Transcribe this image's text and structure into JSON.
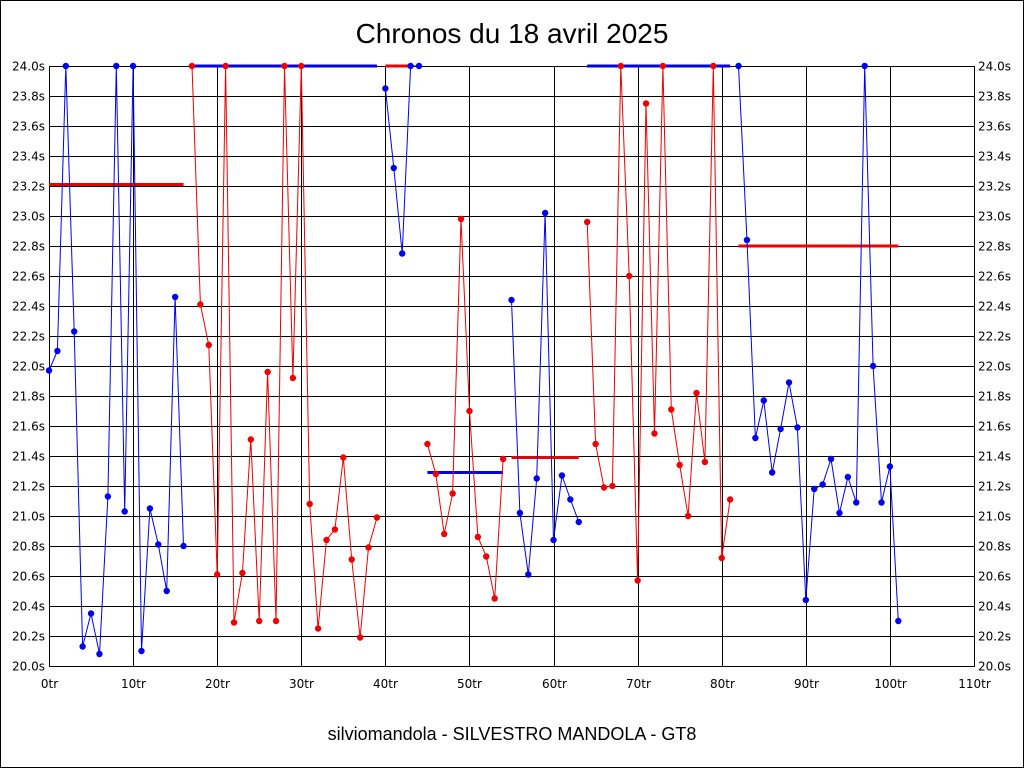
{
  "chart_data": {
    "type": "line",
    "title": "Chronos du 18 avril 2025",
    "subtitle": "silviomandola - SILVESTRO MANDOLA - GT8",
    "x_unit": "tr",
    "y_unit": "s",
    "xlim": [
      0,
      110
    ],
    "ylim": [
      20.0,
      24.0
    ],
    "x_ticks": [
      0,
      10,
      20,
      30,
      40,
      50,
      60,
      70,
      80,
      90,
      100,
      110
    ],
    "y_ticks": [
      20.0,
      20.2,
      20.4,
      20.6,
      20.8,
      21.0,
      21.2,
      21.4,
      21.6,
      21.8,
      22.0,
      22.2,
      22.4,
      22.6,
      22.8,
      23.0,
      23.2,
      23.4,
      23.6,
      23.8,
      24.0
    ],
    "x_tick_labels": [
      "0tr",
      "10tr",
      "20tr",
      "30tr",
      "40tr",
      "50tr",
      "60tr",
      "70tr",
      "80tr",
      "90tr",
      "100tr",
      "110tr"
    ],
    "y_tick_labels": [
      "20.0s",
      "20.2s",
      "20.4s",
      "20.6s",
      "20.8s",
      "21.0s",
      "21.2s",
      "21.4s",
      "21.6s",
      "21.8s",
      "22.0s",
      "22.2s",
      "22.4s",
      "22.6s",
      "22.8s",
      "23.0s",
      "23.2s",
      "23.4s",
      "23.6s",
      "23.8s",
      "24.0s"
    ],
    "grid": true,
    "colors": {
      "blue": "#0000ee",
      "red": "#ee0000",
      "grid": "#000000"
    },
    "series": [
      {
        "color": "blue",
        "x": [
          0,
          1,
          2,
          3,
          4,
          5,
          6,
          7,
          8,
          9,
          10,
          11,
          12,
          13,
          14,
          15,
          16
        ],
        "y": [
          21.97,
          22.1,
          24.0,
          22.23,
          20.13,
          20.35,
          20.08,
          21.13,
          24.0,
          21.03,
          24.0,
          20.1,
          21.05,
          20.81,
          20.5,
          22.46,
          20.8
        ]
      },
      {
        "color": "red",
        "x": [
          17,
          18,
          19,
          20,
          21,
          22,
          23,
          24,
          25,
          26,
          27,
          28,
          29,
          30,
          31,
          32,
          33,
          34,
          35,
          36,
          37,
          38,
          39
        ],
        "y": [
          24.0,
          22.41,
          22.14,
          20.61,
          24.0,
          20.29,
          20.62,
          21.51,
          20.3,
          21.96,
          20.3,
          24.0,
          21.92,
          24.0,
          21.08,
          20.25,
          20.84,
          20.91,
          21.39,
          20.71,
          20.19,
          20.79,
          20.99
        ]
      },
      {
        "color": "blue",
        "x": [
          40,
          41,
          42,
          43,
          44
        ],
        "y": [
          23.85,
          23.32,
          22.75,
          24.0,
          24.0
        ]
      },
      {
        "color": "red",
        "x": [
          45,
          46,
          47,
          48,
          49,
          50,
          51,
          52,
          53,
          54
        ],
        "y": [
          21.48,
          21.28,
          20.88,
          21.15,
          22.98,
          21.7,
          20.86,
          20.73,
          20.45,
          21.38
        ]
      },
      {
        "color": "blue",
        "x": [
          55,
          56,
          57,
          58,
          59,
          60,
          61,
          62,
          63
        ],
        "y": [
          22.44,
          21.02,
          20.61,
          21.25,
          23.02,
          20.84,
          21.27,
          21.11,
          20.96
        ]
      },
      {
        "color": "red",
        "x": [
          64,
          65,
          66,
          67,
          68,
          69,
          70,
          71,
          72,
          73,
          74,
          75,
          76,
          77,
          78,
          79,
          80,
          81
        ],
        "y": [
          22.96,
          21.48,
          21.19,
          21.2,
          24.0,
          22.6,
          20.57,
          23.75,
          21.55,
          24.0,
          21.71,
          21.34,
          21.0,
          21.82,
          21.36,
          24.0,
          20.72,
          21.11
        ]
      },
      {
        "color": "blue",
        "x": [
          82,
          83,
          84,
          85,
          86,
          87,
          88,
          89,
          90,
          91,
          92,
          93,
          94,
          95,
          96,
          97,
          98,
          99,
          100,
          101
        ],
        "y": [
          24.0,
          22.84,
          21.52,
          21.77,
          21.29,
          21.58,
          21.89,
          21.59,
          20.44,
          21.18,
          21.21,
          21.38,
          21.02,
          21.26,
          21.09,
          24.0,
          22.0,
          21.09,
          21.33,
          20.3
        ]
      }
    ],
    "average_lines": [
      {
        "color": "red",
        "x": [
          0,
          16
        ],
        "y": 23.21
      },
      {
        "color": "blue",
        "x": [
          17,
          39
        ],
        "y": 24.0
      },
      {
        "color": "red",
        "x": [
          40,
          43
        ],
        "y": 24.0
      },
      {
        "color": "blue",
        "x": [
          45,
          54
        ],
        "y": 21.29
      },
      {
        "color": "red",
        "x": [
          55,
          63
        ],
        "y": 21.39
      },
      {
        "color": "blue",
        "x": [
          64,
          81
        ],
        "y": 24.0
      },
      {
        "color": "red",
        "x": [
          82,
          101
        ],
        "y": 22.8
      }
    ]
  }
}
